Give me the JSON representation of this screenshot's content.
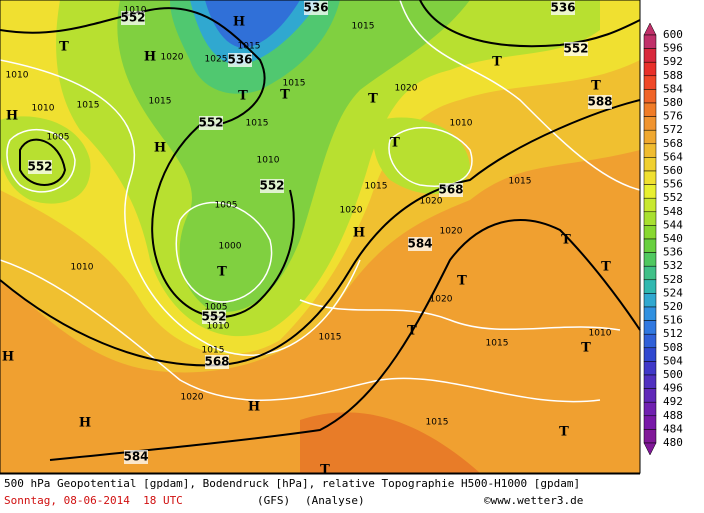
{
  "legend": {
    "labels": [
      "600",
      "596",
      "592",
      "588",
      "584",
      "580",
      "576",
      "572",
      "568",
      "564",
      "560",
      "556",
      "552",
      "548",
      "544",
      "540",
      "536",
      "532",
      "528",
      "524",
      "520",
      "516",
      "512",
      "508",
      "504",
      "500",
      "496",
      "492",
      "488",
      "484",
      "480"
    ]
  },
  "caption": {
    "line1": "500 hPa Geopotential [gpdam], Bodendruck [hPa], relative Topographie H500-H1000 [gpdam]",
    "date": "Sonntag, 08-06-2014  18 UTC",
    "model": "(GFS)",
    "mode": "(Analyse)",
    "credit": "©www.wetter3.de"
  },
  "map_labels": [
    "552",
    "1010",
    "536",
    "1015",
    "536",
    "552",
    "588",
    "T",
    "T",
    "T",
    "H",
    "H",
    "1020",
    "1015",
    "1025",
    "536",
    "T",
    "1015",
    "T",
    "1010",
    "1010",
    "1015",
    "H",
    "1015",
    "552",
    "1015",
    "1020",
    "T",
    "1010",
    "1005",
    "552",
    "H",
    "T",
    "1010",
    "552",
    "1015",
    "568",
    "1015",
    "1005",
    "1020",
    "1020",
    "H",
    "584",
    "1020",
    "T",
    "1000",
    "1010",
    "T",
    "T",
    "T",
    "1020",
    "552",
    "1005",
    "1010",
    "T",
    "1015",
    "1010",
    "1015",
    "T",
    "1015",
    "568",
    "H",
    "H",
    "1020",
    "1015",
    "H",
    "T",
    "584",
    "T"
  ]
}
